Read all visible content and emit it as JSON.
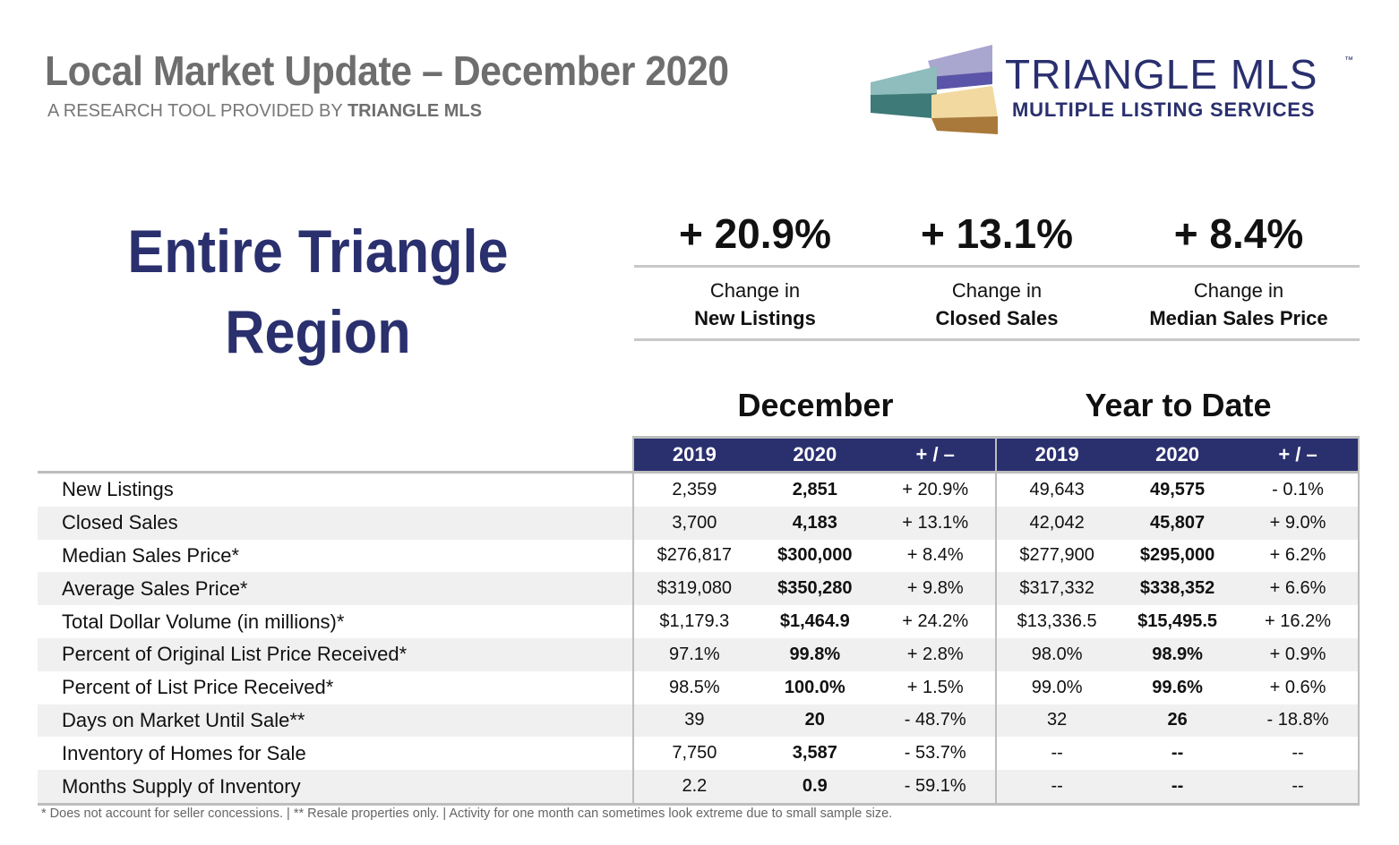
{
  "header": {
    "title": "Local Market Update – December 2020",
    "subtitle_prefix": "A RESEARCH TOOL PROVIDED BY",
    "subtitle_brand": "TRIANGLE MLS"
  },
  "logo": {
    "name": "TRIANGLE MLS",
    "tm": "™",
    "tagline": "MULTIPLE LISTING SERVICES",
    "colors": [
      "#8fbcbc",
      "#3d7a78",
      "#a9a6cf",
      "#5a55a8",
      "#f1d9a0",
      "#a8793a"
    ]
  },
  "region": {
    "line1": "Entire Triangle",
    "line2": "Region"
  },
  "kpis": [
    {
      "value": "+ 20.9%",
      "label1": "Change in",
      "label2": "New Listings"
    },
    {
      "value": "+ 13.1%",
      "label1": "Change in",
      "label2": "Closed Sales"
    },
    {
      "value": "+ 8.4%",
      "label1": "Change in",
      "label2": "Median Sales Price"
    }
  ],
  "table": {
    "group_month": "December",
    "group_ytd": "Year to Date",
    "columns": [
      "2019",
      "2020",
      "+ / –",
      "2019",
      "2020",
      "+ / –"
    ],
    "rows": [
      {
        "label": "New Listings",
        "cells": [
          "2,359",
          "2,851",
          "+ 20.9%",
          "49,643",
          "49,575",
          "- 0.1%"
        ]
      },
      {
        "label": "Closed Sales",
        "cells": [
          "3,700",
          "4,183",
          "+ 13.1%",
          "42,042",
          "45,807",
          "+ 9.0%"
        ]
      },
      {
        "label": "Median Sales Price*",
        "cells": [
          "$276,817",
          "$300,000",
          "+ 8.4%",
          "$277,900",
          "$295,000",
          "+ 6.2%"
        ]
      },
      {
        "label": "Average Sales Price*",
        "cells": [
          "$319,080",
          "$350,280",
          "+ 9.8%",
          "$317,332",
          "$338,352",
          "+ 6.6%"
        ]
      },
      {
        "label": "Total Dollar Volume (in millions)*",
        "cells": [
          "$1,179.3",
          "$1,464.9",
          "+ 24.2%",
          "$13,336.5",
          "$15,495.5",
          "+ 16.2%"
        ]
      },
      {
        "label": "Percent of Original List Price Received*",
        "cells": [
          "97.1%",
          "99.8%",
          "+ 2.8%",
          "98.0%",
          "98.9%",
          "+ 0.9%"
        ]
      },
      {
        "label": "Percent of List Price Received*",
        "cells": [
          "98.5%",
          "100.0%",
          "+ 1.5%",
          "99.0%",
          "99.6%",
          "+ 0.6%"
        ]
      },
      {
        "label": "Days on Market Until Sale**",
        "cells": [
          "39",
          "20",
          "- 48.7%",
          "32",
          "26",
          "- 18.8%"
        ]
      },
      {
        "label": "Inventory of Homes for Sale",
        "cells": [
          "7,750",
          "3,587",
          "- 53.7%",
          "--",
          "--",
          "--"
        ]
      },
      {
        "label": "Months Supply of Inventory",
        "cells": [
          "2.2",
          "0.9",
          "- 59.1%",
          "--",
          "--",
          "--"
        ]
      }
    ]
  },
  "footnote": "* Does not account for seller concessions.  |  ** Resale properties only.  |  Activity for one month can sometimes look extreme due to small sample size.",
  "colors": {
    "brand_navy": "#2a2f6e",
    "header_gray": "#6e6e6e"
  }
}
